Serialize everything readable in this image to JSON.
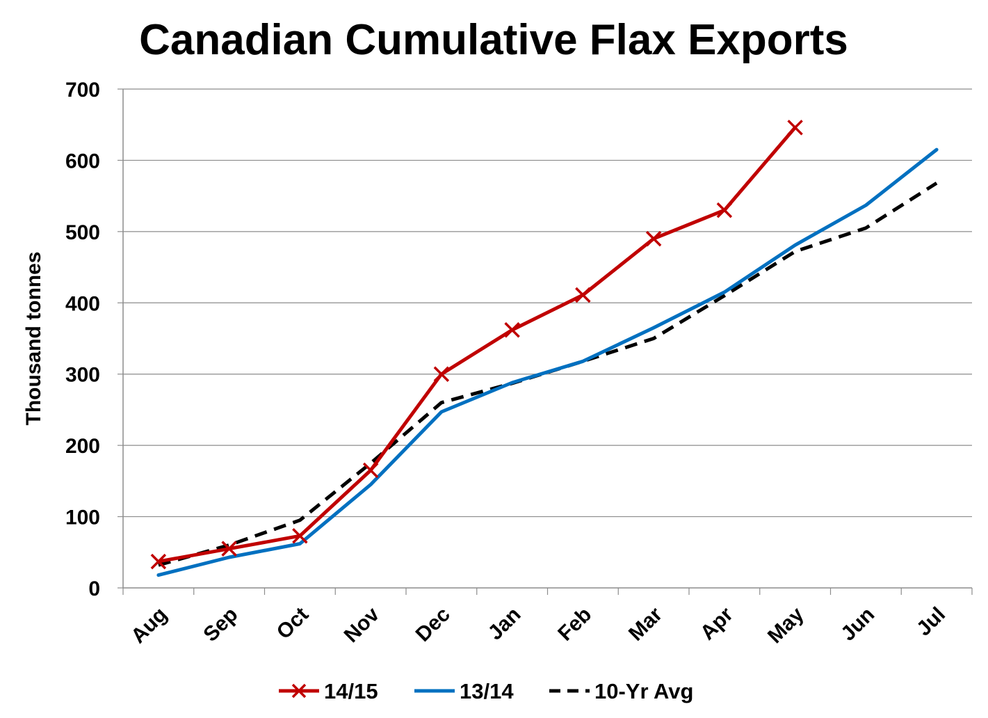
{
  "chart_data": {
    "type": "line",
    "title": "Canadian Cumulative Flax Exports",
    "xlabel": "",
    "ylabel": "Thousand tonnes",
    "categories": [
      "Aug",
      "Sep",
      "Oct",
      "Nov",
      "Dec",
      "Jan",
      "Feb",
      "Mar",
      "Apr",
      "May",
      "Jun",
      "Jul"
    ],
    "ylim": [
      0,
      700
    ],
    "yticks": [
      0,
      100,
      200,
      300,
      400,
      500,
      600,
      700
    ],
    "grid": true,
    "legend_position": "bottom",
    "series": [
      {
        "name": "14/15",
        "color": "#C00000",
        "style": "solid",
        "marker": "x",
        "values": [
          37,
          55,
          73,
          165,
          300,
          362,
          411,
          490,
          530,
          646,
          null,
          null
        ]
      },
      {
        "name": "13/14",
        "color": "#0070C0",
        "style": "solid",
        "marker": "none",
        "values": [
          18,
          43,
          62,
          145,
          247,
          288,
          318,
          365,
          415,
          481,
          537,
          615
        ]
      },
      {
        "name": "10-Yr Avg",
        "color": "#000000",
        "style": "dashed",
        "marker": "none",
        "values": [
          32,
          60,
          95,
          175,
          260,
          287,
          318,
          350,
          410,
          472,
          505,
          568
        ]
      }
    ]
  }
}
